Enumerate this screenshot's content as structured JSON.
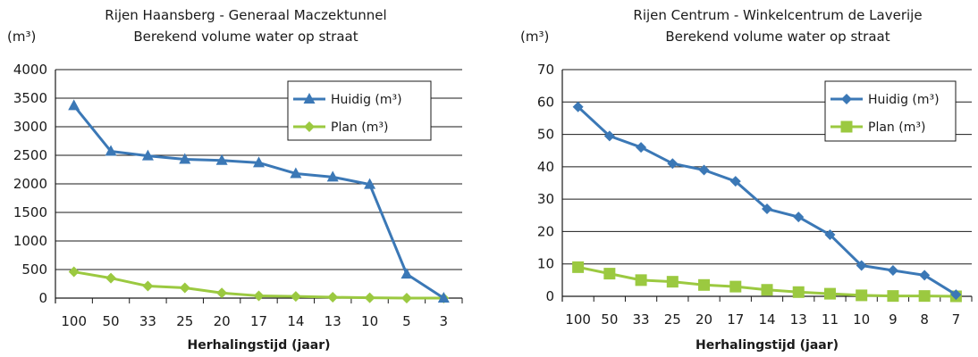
{
  "chart_data": [
    {
      "type": "line",
      "title": "Rijen Haansberg - Generaal Maczektunnel",
      "subtitle": "Berekend volume water op straat",
      "ylabel": "(m³)",
      "xlabel": "Herhalingstijd (jaar)",
      "categories": [
        "100",
        "50",
        "33",
        "25",
        "20",
        "17",
        "14",
        "13",
        "10",
        "5",
        "3"
      ],
      "ylim": [
        0,
        4000
      ],
      "yticks": [
        0,
        500,
        1000,
        1500,
        2000,
        2500,
        3000,
        3500,
        4000
      ],
      "grid": true,
      "legend_position": "top-right",
      "series": [
        {
          "name": "Huidig (m³)",
          "color": "#3b78b6",
          "marker": "triangle",
          "values": [
            3370,
            2570,
            2490,
            2430,
            2410,
            2370,
            2180,
            2120,
            1990,
            420,
            0
          ]
        },
        {
          "name": "Plan (m³)",
          "color": "#9bc940",
          "marker": "diamond",
          "values": [
            460,
            350,
            210,
            180,
            90,
            40,
            30,
            15,
            5,
            0,
            0
          ]
        }
      ]
    },
    {
      "type": "line",
      "title": "Rijen Centrum - Winkelcentrum de Laverije",
      "subtitle": "Berekend volume water op straat",
      "ylabel": "(m³)",
      "xlabel": "Herhalingstijd (jaar)",
      "categories": [
        "100",
        "50",
        "33",
        "25",
        "20",
        "17",
        "14",
        "13",
        "11",
        "10",
        "9",
        "8",
        "7"
      ],
      "ylim": [
        0,
        70
      ],
      "yticks": [
        0,
        10,
        20,
        30,
        40,
        50,
        60,
        70
      ],
      "grid": true,
      "legend_position": "top-right",
      "series": [
        {
          "name": "Huidig (m³)",
          "color": "#3b78b6",
          "marker": "diamond",
          "values": [
            58.5,
            49.5,
            46,
            41,
            39,
            35.5,
            27,
            24.5,
            19,
            9.5,
            8,
            6.5,
            0.5
          ]
        },
        {
          "name": "Plan (m³)",
          "color": "#9bc940",
          "marker": "square",
          "values": [
            9,
            7,
            5,
            4.5,
            3.5,
            3,
            2,
            1.3,
            0.8,
            0.3,
            0.1,
            0.1,
            0
          ]
        }
      ]
    }
  ]
}
